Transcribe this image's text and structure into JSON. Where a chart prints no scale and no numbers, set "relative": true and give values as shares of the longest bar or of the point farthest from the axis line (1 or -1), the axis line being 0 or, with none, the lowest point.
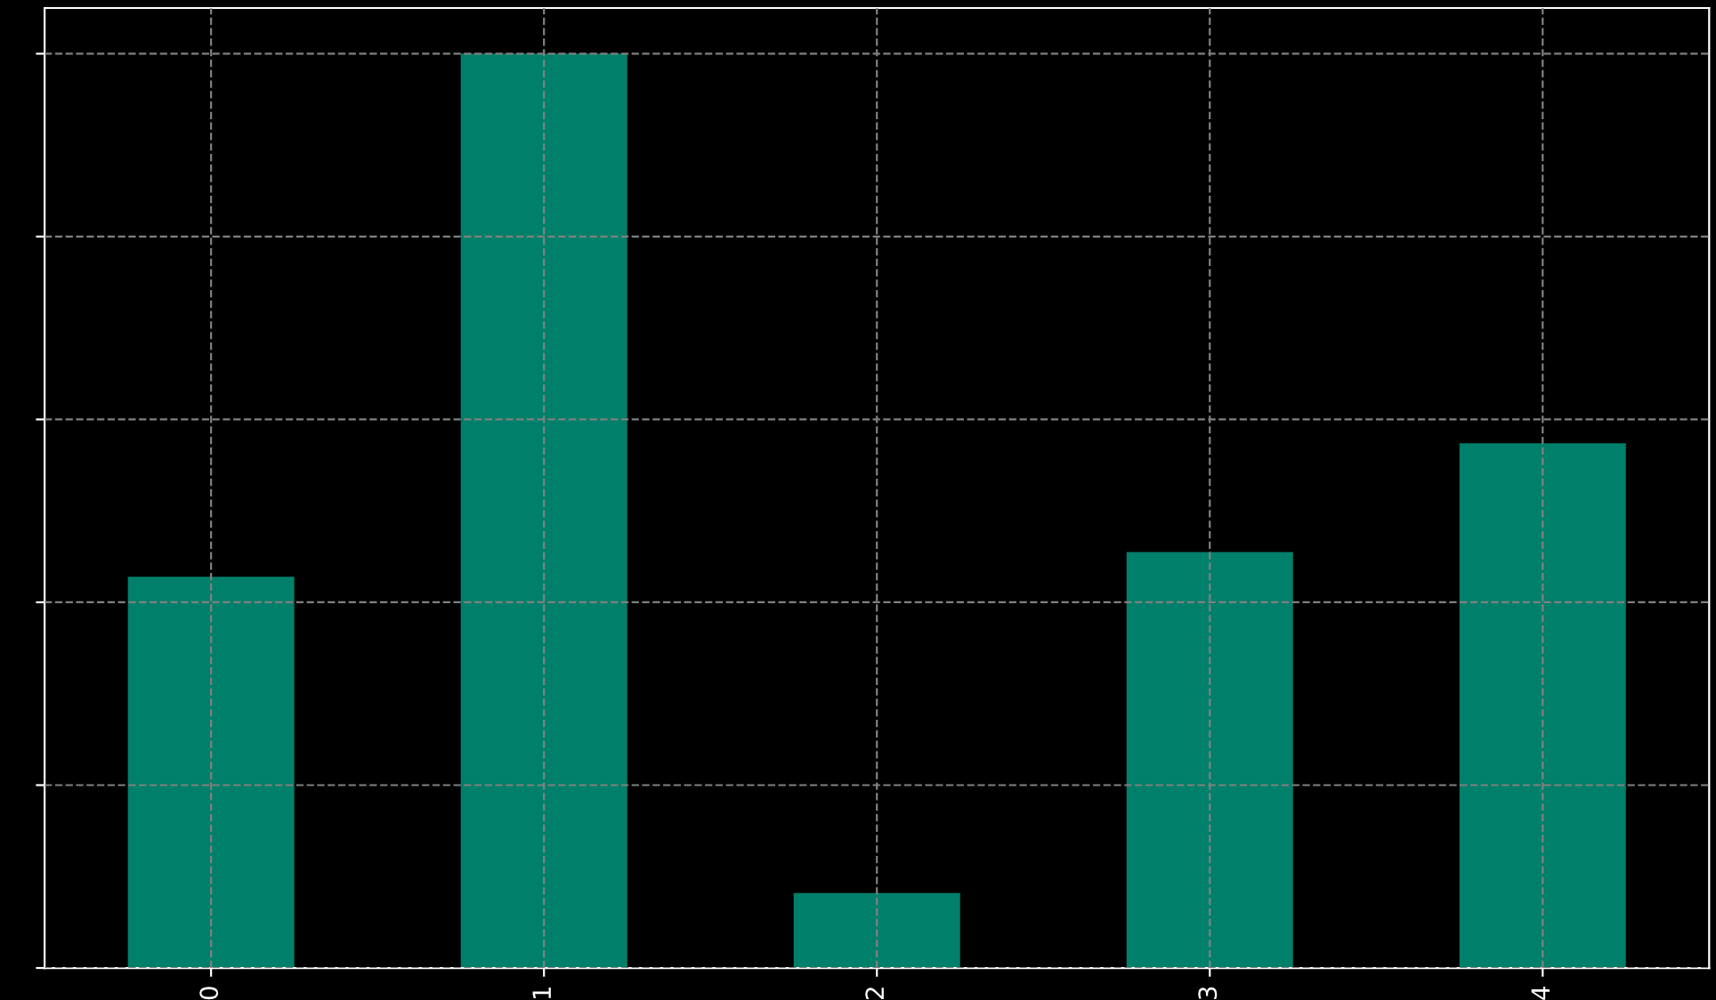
{
  "chart_data": {
    "type": "bar",
    "categories": [
      "0",
      "1",
      "2",
      "3",
      "4"
    ],
    "values": [
      0.428,
      1,
      0.082,
      0.455,
      0.574
    ],
    "color": "#00806a",
    "relative": true,
    "grid": true
  }
}
